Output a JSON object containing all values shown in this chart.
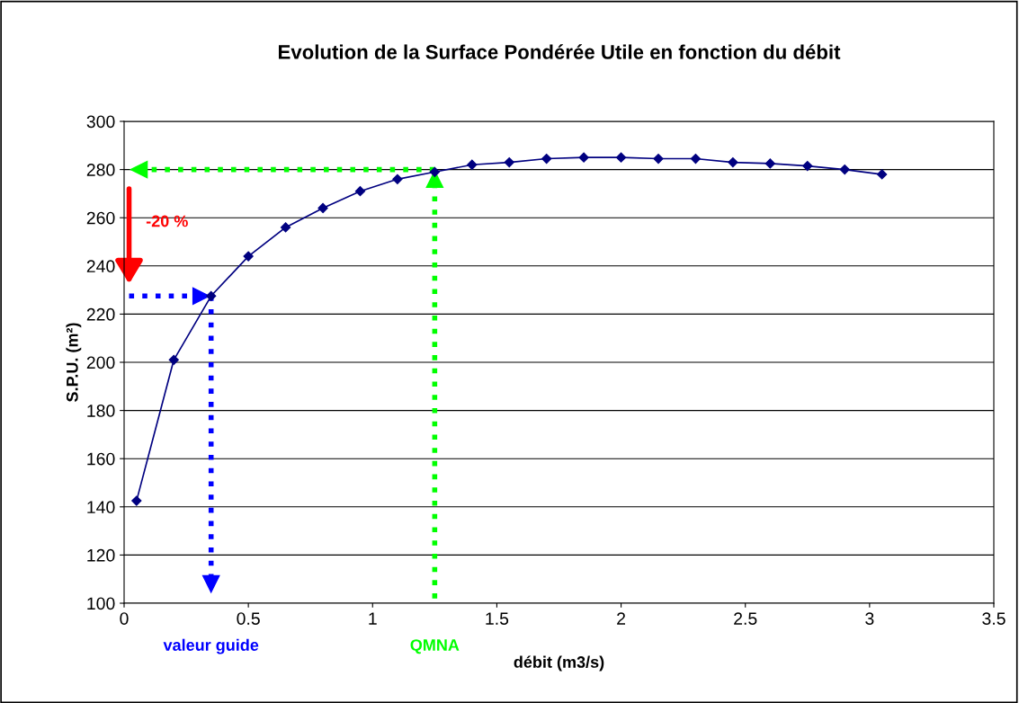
{
  "chart_data": {
    "type": "line",
    "title": "Evolution de la Surface Pondérée Utile en fonction du débit",
    "xlabel": "débit (m3/s)",
    "ylabel": "S.P.U. (m²)",
    "x": [
      0.05,
      0.2,
      0.35,
      0.5,
      0.65,
      0.8,
      0.95,
      1.1,
      1.25,
      1.4,
      1.55,
      1.7,
      1.85,
      2.0,
      2.15,
      2.3,
      2.45,
      2.6,
      2.75,
      2.9,
      3.05
    ],
    "series": [
      {
        "color": "#000080",
        "values": [
          142.5,
          201,
          227.5,
          244,
          256,
          264,
          271,
          276,
          279,
          282,
          283,
          284.5,
          285,
          285,
          284.5,
          284.5,
          283,
          282.5,
          281.5,
          280,
          278
        ]
      }
    ],
    "marker": "diamond",
    "line_style": "solid",
    "grid": "y",
    "legend": false,
    "xlim": [
      0,
      3.5
    ],
    "xticks": [
      0,
      0.5,
      1,
      1.5,
      2,
      2.5,
      3,
      3.5
    ],
    "ylim": [
      100,
      300
    ],
    "yticks": [
      100,
      120,
      140,
      160,
      180,
      200,
      220,
      240,
      260,
      280,
      300
    ],
    "ref_lines": [
      {
        "axis": "y",
        "value": 227.5,
        "color": "#0000ff",
        "line_style": "dotted"
      },
      {
        "axis": "x",
        "value": 0.35,
        "label": "valeur guide",
        "color": "#0000ff",
        "line_style": "dotted"
      },
      {
        "axis": "y",
        "value": 280,
        "color": "#00ff00",
        "line_style": "dotted"
      },
      {
        "axis": "x",
        "value": 1.25,
        "label": "QMNA",
        "color": "#00ff00",
        "line_style": "dotted"
      }
    ],
    "annotations": [
      "-20 %"
    ]
  }
}
